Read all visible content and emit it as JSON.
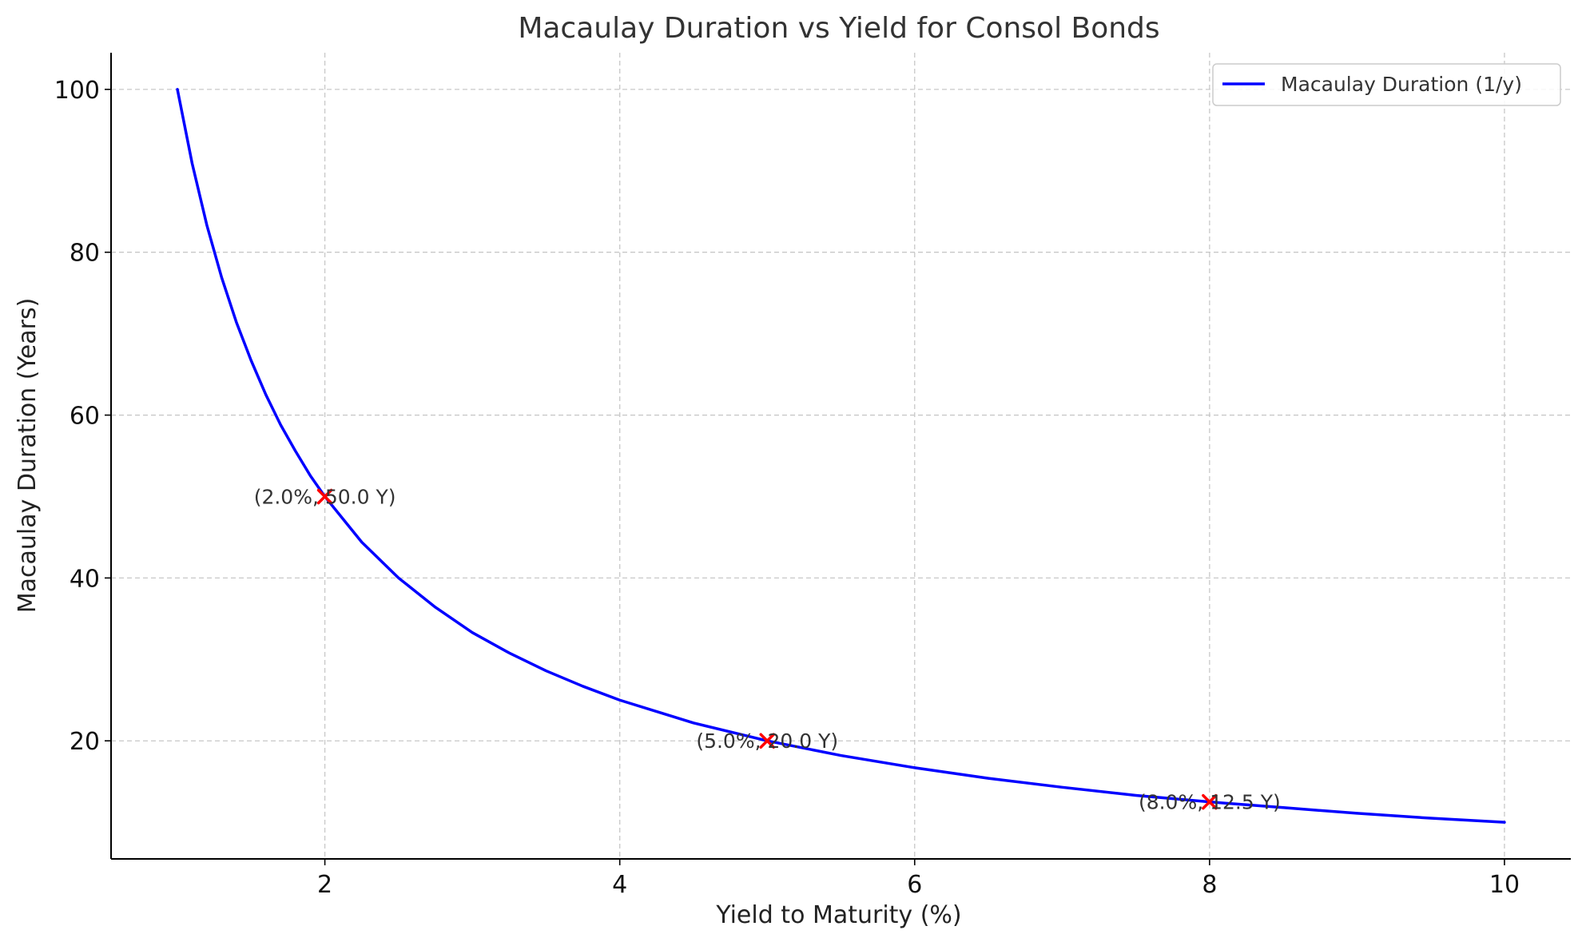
{
  "chart_data": {
    "type": "line",
    "title": "Macaulay Duration vs Yield for Consol Bonds",
    "xlabel": "Yield to Maturity (%)",
    "ylabel": "Macaulay Duration (Years)",
    "xlim": [
      0.55,
      10.45
    ],
    "ylim": [
      5.5,
      104.5
    ],
    "x_ticks": [
      2,
      4,
      6,
      8,
      10
    ],
    "y_ticks": [
      20,
      40,
      60,
      80,
      100
    ],
    "grid": true,
    "legend_position": "top-right",
    "series": [
      {
        "name": "Macaulay Duration (1/y)",
        "color": "#0000ff",
        "x": [
          1.0,
          1.1,
          1.2,
          1.3,
          1.4,
          1.5,
          1.6,
          1.7,
          1.8,
          1.9,
          2.0,
          2.25,
          2.5,
          2.75,
          3.0,
          3.25,
          3.5,
          3.75,
          4.0,
          4.5,
          5.0,
          5.5,
          6.0,
          6.5,
          7.0,
          7.5,
          8.0,
          8.5,
          9.0,
          9.5,
          10.0
        ],
        "y": [
          100.0,
          90.9,
          83.3,
          76.9,
          71.4,
          66.7,
          62.5,
          58.8,
          55.6,
          52.6,
          50.0,
          44.4,
          40.0,
          36.4,
          33.3,
          30.8,
          28.6,
          26.7,
          25.0,
          22.2,
          20.0,
          18.2,
          16.7,
          15.4,
          14.3,
          13.3,
          12.5,
          11.8,
          11.1,
          10.5,
          10.0
        ]
      }
    ],
    "highlights": {
      "color": "#ff0000",
      "marker": "x",
      "points": [
        {
          "x": 2.0,
          "y": 50.0,
          "label": "(2.0%, 50.0 Y)"
        },
        {
          "x": 5.0,
          "y": 20.0,
          "label": "(5.0%, 20.0 Y)"
        },
        {
          "x": 8.0,
          "y": 12.5,
          "label": "(8.0%, 12.5 Y)"
        }
      ]
    }
  }
}
